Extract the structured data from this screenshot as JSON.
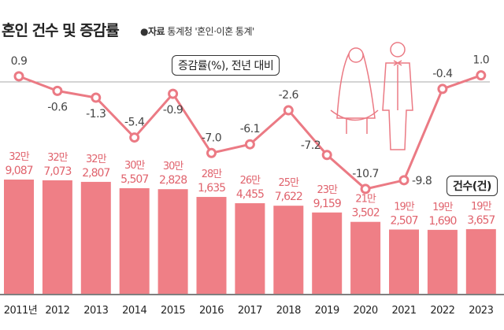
{
  "title": "혼인 건수 및 증감률",
  "source": {
    "bullet": "●",
    "label": "자료",
    "text": "통계청 '혼인·이혼 통계'"
  },
  "legend": {
    "rate": "증감률(%), 전년 대비",
    "count": "건수(건)"
  },
  "colors": {
    "bar": "#ef7f86",
    "line": "#eb7a84",
    "label": "#e0636d",
    "axis": "#333333"
  },
  "illustration": "wedding-couple-icon",
  "chart_data": {
    "type": "bar+line",
    "categories": [
      "2011년",
      "2012",
      "2013",
      "2014",
      "2015",
      "2016",
      "2017",
      "2018",
      "2019",
      "2020",
      "2021",
      "2022",
      "2023"
    ],
    "series": [
      {
        "name": "건수(건)",
        "type": "bar",
        "values": [
          329087,
          327073,
          322807,
          305507,
          302828,
          281635,
          264455,
          257622,
          239159,
          213502,
          192507,
          191690,
          193657
        ],
        "labels_top": [
          "32만",
          "32만",
          "32만",
          "30만",
          "30만",
          "28만",
          "26만",
          "25만",
          "23만",
          "21만",
          "19만",
          "19만",
          "19만"
        ],
        "labels_bottom": [
          "9,087",
          "7,073",
          "2,807",
          "5,507",
          "2,828",
          "1,635",
          "4,455",
          "7,622",
          "9,159",
          "3,502",
          "2,507",
          "1,690",
          "3,657"
        ]
      },
      {
        "name": "증감률(%), 전년 대비",
        "type": "line",
        "values": [
          0.9,
          -0.6,
          -1.3,
          -5.4,
          -0.9,
          -7.0,
          -6.1,
          -2.6,
          -7.2,
          -10.7,
          -9.8,
          -0.4,
          1.0
        ],
        "labels": [
          "0.9",
          "-0.6",
          "-1.3",
          "-5.4",
          "-0.9",
          "-7.0",
          "-6.1",
          "-2.6",
          "-7.2",
          "-10.7",
          "-9.8",
          "-0.4",
          "1.0"
        ]
      }
    ]
  }
}
